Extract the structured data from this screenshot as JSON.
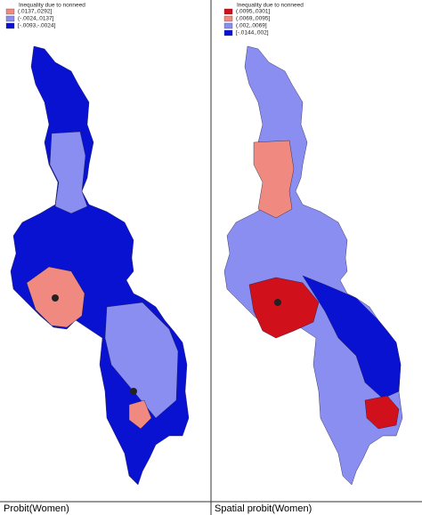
{
  "panels": [
    {
      "legend": {
        "title": "Inequality due to nonneed",
        "entries": [
          {
            "label": "(.0137,.0292]",
            "color": "#f08a80"
          },
          {
            "label": "(-.0024,.0137]",
            "color": "#8a8ef0"
          },
          {
            "label": "[-.0093,-.0024]",
            "color": "#0a12d2"
          }
        ]
      },
      "caption": "Probit(Women)"
    },
    {
      "legend": {
        "title": "Inequality due to nonneed",
        "entries": [
          {
            "label": "(.0095,.0301]",
            "color": "#d0101a"
          },
          {
            "label": "(.0069,.0095]",
            "color": "#f08a80"
          },
          {
            "label": "(.002,.0069]",
            "color": "#8a8ef0"
          },
          {
            "label": "[-.0144,.002]",
            "color": "#0a12d2"
          }
        ]
      },
      "caption": "Spatial probit(Women)"
    }
  ]
}
